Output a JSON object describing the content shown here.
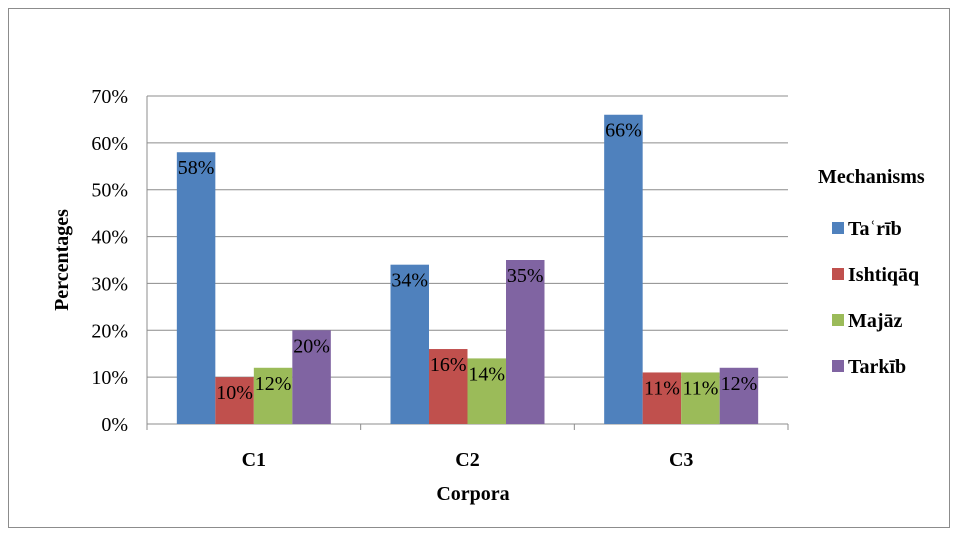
{
  "chart_data": {
    "type": "bar",
    "title": "",
    "xlabel": "Corpora",
    "ylabel": "Percentages",
    "categories": [
      "C1",
      "C2",
      "C3"
    ],
    "ylim": [
      0,
      70
    ],
    "yticks": [
      0,
      10,
      20,
      30,
      40,
      50,
      60,
      70
    ],
    "ytick_suffix": "%",
    "grid": true,
    "legend": {
      "title": "Mechanisms",
      "position": "right"
    },
    "series": [
      {
        "name": "Taʿrīb",
        "color": "#4f81bd",
        "values": [
          58,
          34,
          66
        ],
        "labels": [
          "58%",
          "34%",
          "66%"
        ]
      },
      {
        "name": "Ishtiqāq",
        "color": "#c0504d",
        "values": [
          10,
          16,
          11
        ],
        "labels": [
          "10%",
          "16%",
          "11%"
        ]
      },
      {
        "name": "Majāz",
        "color": "#9bbb59",
        "values": [
          12,
          14,
          11
        ],
        "labels": [
          "12%",
          "14%",
          "11%"
        ]
      },
      {
        "name": "Tarkīb",
        "color": "#8064a2",
        "values": [
          20,
          35,
          12
        ],
        "labels": [
          "20%",
          "35%",
          "12%"
        ]
      }
    ]
  }
}
